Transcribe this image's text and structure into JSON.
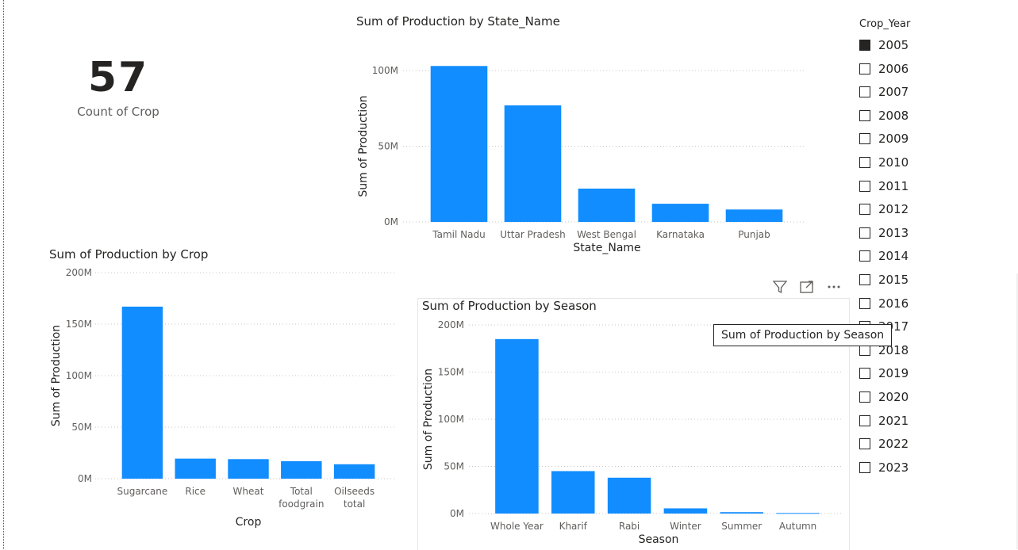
{
  "card": {
    "value": "57",
    "label": "Count of Crop"
  },
  "slicer": {
    "title": "Crop_Year",
    "items": [
      {
        "label": "2005",
        "checked": true
      },
      {
        "label": "2006",
        "checked": false
      },
      {
        "label": "2007",
        "checked": false
      },
      {
        "label": "2008",
        "checked": false
      },
      {
        "label": "2009",
        "checked": false
      },
      {
        "label": "2010",
        "checked": false
      },
      {
        "label": "2011",
        "checked": false
      },
      {
        "label": "2012",
        "checked": false
      },
      {
        "label": "2013",
        "checked": false
      },
      {
        "label": "2014",
        "checked": false
      },
      {
        "label": "2015",
        "checked": false
      },
      {
        "label": "2016",
        "checked": false
      },
      {
        "label": "2017",
        "checked": false
      },
      {
        "label": "2018",
        "checked": false
      },
      {
        "label": "2019",
        "checked": false
      },
      {
        "label": "2020",
        "checked": false
      },
      {
        "label": "2021",
        "checked": false
      },
      {
        "label": "2022",
        "checked": false
      },
      {
        "label": "2023",
        "checked": false
      }
    ]
  },
  "tooltip": {
    "text": "Sum of Production by Season"
  },
  "header_icons": [
    "filter-icon",
    "focus-mode-icon",
    "more-options-icon"
  ],
  "colors": {
    "bar": "#118dff",
    "grid": "#c8c6c4",
    "text": "#605e5c"
  },
  "chart_data": [
    {
      "id": "state",
      "type": "bar",
      "title": "Sum of Production by State_Name",
      "xlabel": "State_Name",
      "ylabel": "Sum of Production",
      "categories": [
        "Tamil Nadu",
        "Uttar Pradesh",
        "West Bengal",
        "Karnataka",
        "Punjab"
      ],
      "values": [
        103000000,
        77000000,
        22000000,
        12000000,
        8200000
      ],
      "ylim": [
        0,
        100000000
      ],
      "yticks": [
        {
          "v": 0,
          "label": "0M"
        },
        {
          "v": 50000000,
          "label": "50M"
        },
        {
          "v": 100000000,
          "label": "100M"
        }
      ],
      "grid": true
    },
    {
      "id": "crop",
      "type": "bar",
      "title": "Sum of Production by Crop",
      "xlabel": "Crop",
      "ylabel": "Sum of Production",
      "categories": [
        "Sugarcane",
        "Rice",
        "Wheat",
        "Total foodgrain",
        "Oilseeds total"
      ],
      "category_lines": [
        [
          "Sugarcane"
        ],
        [
          "Rice"
        ],
        [
          "Wheat"
        ],
        [
          "Total",
          "foodgrain"
        ],
        [
          "Oilseeds",
          "total"
        ]
      ],
      "values": [
        167000000,
        19500000,
        19000000,
        17000000,
        14000000
      ],
      "ylim": [
        0,
        200000000
      ],
      "yticks": [
        {
          "v": 0,
          "label": "0M"
        },
        {
          "v": 50000000,
          "label": "50M"
        },
        {
          "v": 100000000,
          "label": "100M"
        },
        {
          "v": 150000000,
          "label": "150M"
        },
        {
          "v": 200000000,
          "label": "200M"
        }
      ],
      "grid": true
    },
    {
      "id": "season",
      "type": "bar",
      "title": "Sum of Production by Season",
      "xlabel": "Season",
      "ylabel": "Sum of Production",
      "categories": [
        "Whole Year",
        "Kharif",
        "Rabi",
        "Winter",
        "Summer",
        "Autumn"
      ],
      "values": [
        185000000,
        45000000,
        38000000,
        5500000,
        1500000,
        600000
      ],
      "ylim": [
        0,
        200000000
      ],
      "yticks": [
        {
          "v": 0,
          "label": "0M"
        },
        {
          "v": 50000000,
          "label": "50M"
        },
        {
          "v": 100000000,
          "label": "100M"
        },
        {
          "v": 150000000,
          "label": "150M"
        },
        {
          "v": 200000000,
          "label": "200M"
        }
      ],
      "grid": true
    }
  ]
}
